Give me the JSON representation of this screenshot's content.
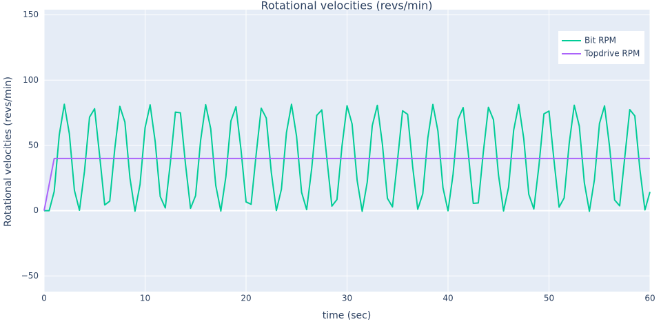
{
  "chart_data": {
    "type": "line",
    "title": "Rotational velocities (revs/min)",
    "xlabel": "time (sec)",
    "ylabel": "Rotational velocities (revs/min)",
    "xlim": [
      0,
      60
    ],
    "xticks": [
      0,
      10,
      20,
      30,
      40,
      50,
      60
    ],
    "ylim": [
      -62,
      154
    ],
    "yticks": [
      {
        "value": -50,
        "label": "−50"
      },
      0,
      50,
      100,
      150
    ],
    "grid": true,
    "legend": "top-right",
    "series": [
      {
        "name": "Bit RPM",
        "color": "#00cc96",
        "x": [
          0,
          0.5,
          1,
          1.5,
          2,
          2.5,
          3,
          3.5,
          4,
          4.5,
          5,
          5.5,
          6,
          6.5,
          7,
          7.5,
          8,
          8.5,
          9,
          9.5,
          10,
          10.5,
          11,
          11.5,
          12,
          12.5,
          13,
          13.5,
          14,
          14.5,
          15,
          15.5,
          16,
          16.5,
          17,
          17.5,
          18,
          18.5,
          19,
          19.5,
          20,
          20.5,
          21,
          21.5,
          22,
          22.5,
          23,
          23.5,
          24,
          24.5,
          25,
          25.5,
          26,
          26.5,
          27,
          27.5,
          28,
          28.5,
          29,
          29.5,
          30,
          30.5,
          31,
          31.5,
          32,
          32.5,
          33,
          33.5,
          34,
          34.5,
          35,
          35.5,
          36,
          36.5,
          37,
          37.5,
          38,
          38.5,
          39,
          39.5,
          40,
          40.5,
          41,
          41.5,
          42,
          42.5,
          43,
          43.5,
          44,
          44.5,
          45,
          45.5,
          46,
          46.5,
          47,
          47.5,
          48,
          48.5,
          49,
          49.5,
          50,
          50.5,
          51,
          51.5,
          52,
          52.5,
          53,
          53.5,
          54,
          54.5,
          55,
          55.5,
          56,
          56.5,
          57,
          57.5,
          58,
          58.5,
          59,
          59.5,
          60
        ],
        "values": [
          0,
          0,
          14.8,
          58.0,
          81.5,
          58.9,
          15.6,
          0.3,
          30.3,
          71.7,
          78.1,
          42.1,
          4.4,
          7.3,
          47.6,
          79.9,
          67.9,
          25.1,
          -0.4,
          20.1,
          63.6,
          81.1,
          52.9,
          10.8,
          2.1,
          36.6,
          75.5,
          75.0,
          35.7,
          1.8,
          11.5,
          53.9,
          81.2,
          62.7,
          19.3,
          -0.3,
          26.0,
          68.7,
          79.6,
          46.6,
          6.7,
          4.9,
          43.2,
          78.5,
          71.0,
          29.3,
          0.1,
          16.4,
          59.8,
          81.5,
          57.0,
          14.0,
          0.8,
          32.3,
          73.0,
          77.2,
          40.1,
          3.5,
          8.5,
          49.5,
          80.4,
          66.4,
          23.2,
          -0.5,
          21.9,
          65.2,
          80.7,
          51.0,
          9.4,
          2.9,
          38.7,
          76.5,
          73.8,
          33.7,
          1.1,
          12.9,
          55.7,
          81.4,
          61.0,
          17.6,
          -0.1,
          27.9,
          70.1,
          79.0,
          44.6,
          5.6,
          5.9,
          45.1,
          79.2,
          69.7,
          27.3,
          -0.2,
          18.0,
          61.6,
          81.3,
          55.2,
          12.5,
          1.3,
          34.2,
          74.2,
          76.3,
          38.1,
          2.7,
          9.8,
          51.4,
          80.8,
          64.8,
          21.4,
          -0.5,
          23.8,
          66.8,
          80.3,
          49.0,
          8.2,
          3.7,
          40.6,
          77.4,
          72.6,
          31.7,
          0.6,
          14.4
        ]
      },
      {
        "name": "Topdrive RPM",
        "color": "#ab63fa",
        "x": [
          0,
          1,
          60
        ],
        "values": [
          0,
          40,
          40
        ]
      }
    ]
  }
}
